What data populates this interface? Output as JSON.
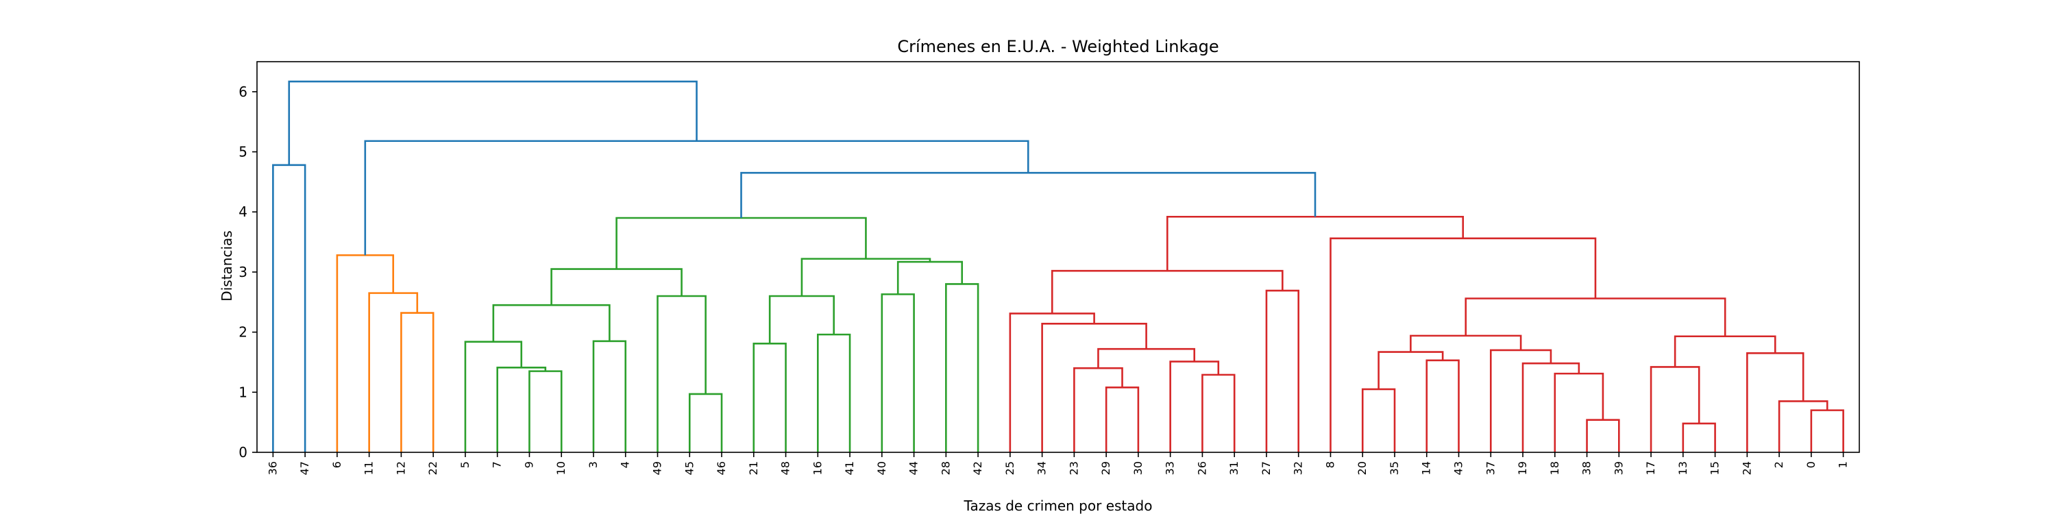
{
  "chart_data": {
    "type": "dendrogram",
    "title": "Crímenes en E.U.A. - Weighted Linkage",
    "xlabel": "Tazas de crimen por estado",
    "ylabel": "Distancias",
    "ylim": [
      0,
      6.5
    ],
    "yticks": [
      0,
      1,
      2,
      3,
      4,
      5,
      6
    ],
    "leaves": [
      36,
      47,
      6,
      11,
      12,
      22,
      5,
      7,
      9,
      10,
      3,
      4,
      49,
      45,
      46,
      21,
      48,
      16,
      41,
      40,
      44,
      28,
      42,
      25,
      34,
      23,
      29,
      30,
      33,
      26,
      31,
      27,
      32,
      8,
      20,
      35,
      14,
      43,
      37,
      19,
      18,
      38,
      39,
      17,
      13,
      15,
      24,
      2,
      0,
      1
    ],
    "colors": {
      "above_threshold": "#1f77b4",
      "orange": "#ff7f0e",
      "green": "#2ca02c",
      "red": "#d62728"
    },
    "links": [
      {
        "id": "c1",
        "l": "36",
        "r": "47",
        "h": 4.78,
        "color": "#1f77b4"
      },
      {
        "id": "c2",
        "l": "12",
        "r": "22",
        "h": 2.32,
        "color": "#ff7f0e"
      },
      {
        "id": "c3",
        "l": "11",
        "r": "c2",
        "h": 2.65,
        "color": "#ff7f0e"
      },
      {
        "id": "c4",
        "l": "6",
        "r": "c3",
        "h": 3.28,
        "color": "#ff7f0e"
      },
      {
        "id": "c5",
        "l": "9",
        "r": "10",
        "h": 1.35,
        "color": "#2ca02c"
      },
      {
        "id": "c6",
        "l": "7",
        "r": "c5",
        "h": 1.41,
        "color": "#2ca02c"
      },
      {
        "id": "c7",
        "l": "5",
        "r": "c6",
        "h": 1.84,
        "color": "#2ca02c"
      },
      {
        "id": "c8",
        "l": "3",
        "r": "4",
        "h": 1.85,
        "color": "#2ca02c"
      },
      {
        "id": "c9",
        "l": "c7",
        "r": "c8",
        "h": 2.45,
        "color": "#2ca02c"
      },
      {
        "id": "c10",
        "l": "45",
        "r": "46",
        "h": 0.97,
        "color": "#2ca02c"
      },
      {
        "id": "c11",
        "l": "49",
        "r": "c10",
        "h": 2.6,
        "color": "#2ca02c"
      },
      {
        "id": "c12",
        "l": "c9",
        "r": "c11",
        "h": 3.05,
        "color": "#2ca02c"
      },
      {
        "id": "c13",
        "l": "21",
        "r": "48",
        "h": 1.81,
        "color": "#2ca02c"
      },
      {
        "id": "c14",
        "l": "16",
        "r": "41",
        "h": 1.96,
        "color": "#2ca02c"
      },
      {
        "id": "c15",
        "l": "c13",
        "r": "c14",
        "h": 2.6,
        "color": "#2ca02c"
      },
      {
        "id": "c16",
        "l": "40",
        "r": "44",
        "h": 2.63,
        "color": "#2ca02c"
      },
      {
        "id": "c17",
        "l": "28",
        "r": "42",
        "h": 2.8,
        "color": "#2ca02c"
      },
      {
        "id": "c18",
        "l": "c16",
        "r": "c17",
        "h": 3.17,
        "color": "#2ca02c"
      },
      {
        "id": "c19",
        "l": "c15",
        "r": "c18",
        "h": 3.22,
        "color": "#2ca02c"
      },
      {
        "id": "c20",
        "l": "c12",
        "r": "c19",
        "h": 3.9,
        "color": "#2ca02c"
      },
      {
        "id": "c21",
        "l": "29",
        "r": "30",
        "h": 1.08,
        "color": "#d62728"
      },
      {
        "id": "c22",
        "l": "23",
        "r": "c21",
        "h": 1.4,
        "color": "#d62728"
      },
      {
        "id": "c23",
        "l": "26",
        "r": "31",
        "h": 1.29,
        "color": "#d62728"
      },
      {
        "id": "c24",
        "l": "33",
        "r": "c23",
        "h": 1.51,
        "color": "#d62728"
      },
      {
        "id": "c25",
        "l": "c22",
        "r": "c24",
        "h": 1.72,
        "color": "#d62728"
      },
      {
        "id": "c26",
        "l": "34",
        "r": "c25",
        "h": 2.14,
        "color": "#d62728"
      },
      {
        "id": "c27",
        "l": "25",
        "r": "c26",
        "h": 2.31,
        "color": "#d62728"
      },
      {
        "id": "c28",
        "l": "27",
        "r": "32",
        "h": 2.69,
        "color": "#d62728"
      },
      {
        "id": "c29",
        "l": "c27",
        "r": "c28",
        "h": 3.02,
        "color": "#d62728"
      },
      {
        "id": "c30",
        "l": "20",
        "r": "35",
        "h": 1.05,
        "color": "#d62728"
      },
      {
        "id": "c31",
        "l": "14",
        "r": "43",
        "h": 1.53,
        "color": "#d62728"
      },
      {
        "id": "c32",
        "l": "c30",
        "r": "c31",
        "h": 1.67,
        "color": "#d62728"
      },
      {
        "id": "c33",
        "l": "38",
        "r": "39",
        "h": 0.54,
        "color": "#d62728"
      },
      {
        "id": "c34",
        "l": "18",
        "r": "c33",
        "h": 1.31,
        "color": "#d62728"
      },
      {
        "id": "c35",
        "l": "19",
        "r": "c34",
        "h": 1.48,
        "color": "#d62728"
      },
      {
        "id": "c36",
        "l": "37",
        "r": "c35",
        "h": 1.7,
        "color": "#d62728"
      },
      {
        "id": "c37",
        "l": "c32",
        "r": "c36",
        "h": 1.94,
        "color": "#d62728"
      },
      {
        "id": "c38",
        "l": "13",
        "r": "15",
        "h": 0.48,
        "color": "#d62728"
      },
      {
        "id": "c39",
        "l": "17",
        "r": "c38",
        "h": 1.42,
        "color": "#d62728"
      },
      {
        "id": "c40",
        "l": "0",
        "r": "1",
        "h": 0.7,
        "color": "#d62728"
      },
      {
        "id": "c41",
        "l": "2",
        "r": "c40",
        "h": 0.85,
        "color": "#d62728"
      },
      {
        "id": "c42",
        "l": "24",
        "r": "c41",
        "h": 1.65,
        "color": "#d62728"
      },
      {
        "id": "c43",
        "l": "c39",
        "r": "c42",
        "h": 1.93,
        "color": "#d62728"
      },
      {
        "id": "c44",
        "l": "c37",
        "r": "c43",
        "h": 2.56,
        "color": "#d62728"
      },
      {
        "id": "c45",
        "l": "8",
        "r": "c44",
        "h": 3.56,
        "color": "#d62728"
      },
      {
        "id": "c46",
        "l": "c29",
        "r": "c45",
        "h": 3.92,
        "color": "#d62728"
      },
      {
        "id": "c47",
        "l": "c20",
        "r": "c46",
        "h": 4.65,
        "color": "#1f77b4"
      },
      {
        "id": "c48",
        "l": "c4",
        "r": "c47",
        "h": 5.18,
        "color": "#1f77b4"
      },
      {
        "id": "c49",
        "l": "c1",
        "r": "c48",
        "h": 6.17,
        "color": "#1f77b4"
      }
    ]
  }
}
